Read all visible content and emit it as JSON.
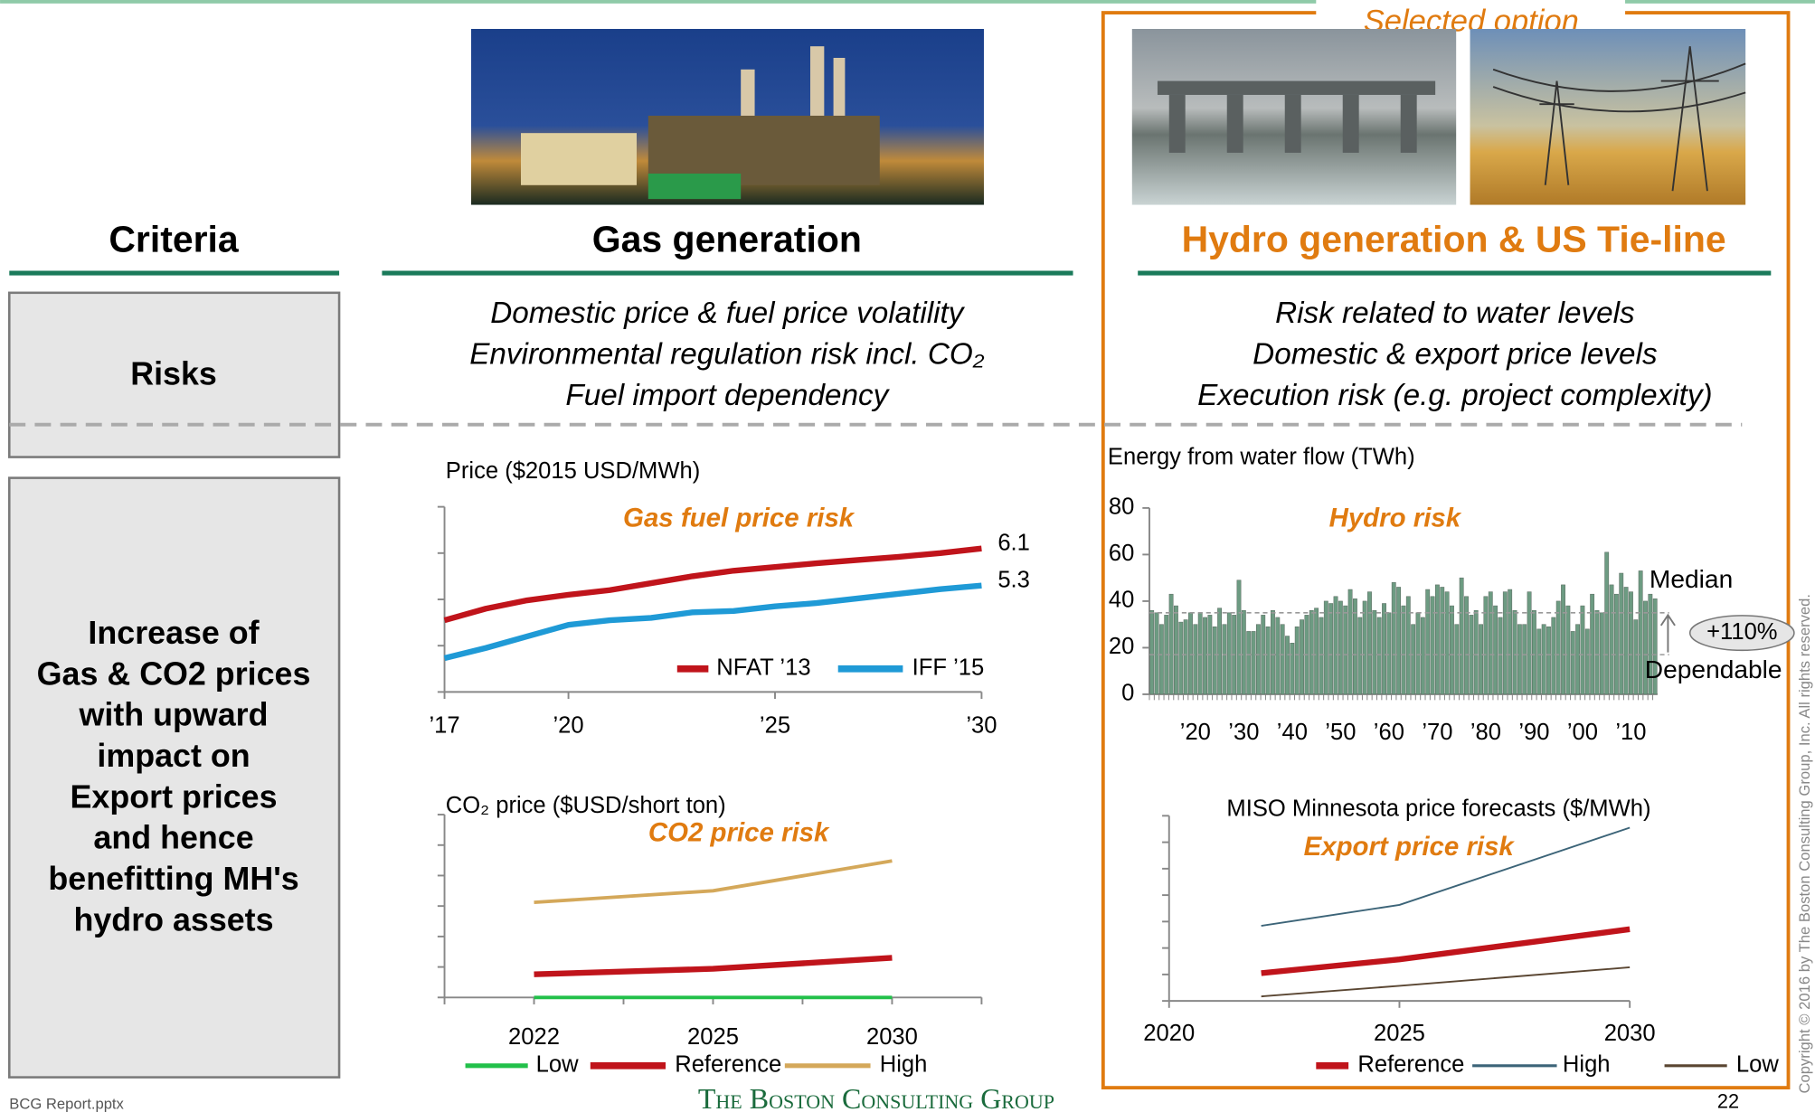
{
  "header": {
    "selected_option": "Selected option"
  },
  "columns": {
    "criteria": "Criteria",
    "gas": "Gas generation",
    "hydro": "Hydro generation & US Tie-line"
  },
  "risks": {
    "label": "Risks",
    "gas": [
      "Domestic price & fuel price volatility",
      "Environmental regulation risk incl. CO₂",
      "Fuel import dependency"
    ],
    "hydro": [
      "Risk related to water levels",
      "Domestic & export price levels",
      "Execution risk (e.g. project complexity)"
    ]
  },
  "impact": {
    "label": [
      "Increase of",
      "Gas & CO2 prices",
      "with upward",
      "impact on",
      "Export prices",
      "and hence",
      "benefitting MH's",
      "hydro assets"
    ]
  },
  "footer": {
    "file": "BCG Report.pptx",
    "logo": "The Boston Consulting Group",
    "page": "22",
    "copyright": "Copyright © 2016 by The Boston Consulting Group, Inc. All rights reserved."
  },
  "chart_data": [
    {
      "type": "line",
      "title": "Price ($2015 USD/MWh)",
      "annotation": "Gas fuel price risk",
      "x": [
        2017,
        2018,
        2019,
        2020,
        2021,
        2022,
        2023,
        2024,
        2025,
        2026,
        2027,
        2028,
        2029,
        2030
      ],
      "xlim": [
        2017,
        2030
      ],
      "xticks": [
        {
          "value": 2017,
          "label": "’17"
        },
        {
          "value": 2020,
          "label": "’20"
        },
        {
          "value": 2025,
          "label": "’25"
        },
        {
          "value": 2030,
          "label": "’30"
        }
      ],
      "ylim": [
        3,
        7
      ],
      "yticks": [
        3,
        4,
        5,
        6,
        7
      ],
      "ytick_labels": false,
      "end_labels": true,
      "series": [
        {
          "name": "NFAT ’13",
          "color": "#c0141b",
          "style": "bold",
          "values": [
            4.55,
            4.8,
            4.98,
            5.1,
            5.2,
            5.35,
            5.5,
            5.62,
            5.7,
            5.78,
            5.85,
            5.92,
            6.0,
            6.1
          ]
        },
        {
          "name": "IFF ’15",
          "color": "#1f9ad6",
          "style": "bold",
          "values": [
            3.73,
            3.95,
            4.2,
            4.45,
            4.55,
            4.6,
            4.72,
            4.75,
            4.85,
            4.92,
            5.02,
            5.12,
            5.22,
            5.3
          ]
        }
      ]
    },
    {
      "type": "line",
      "title": "CO₂ price ($USD/short ton)",
      "annotation": "CO2 price risk",
      "categories": [
        "2022",
        "2025",
        "2030"
      ],
      "ylim": [
        0,
        30
      ],
      "yticks": [
        0,
        5,
        10,
        15,
        20,
        25,
        30
      ],
      "ytick_labels": false,
      "series": [
        {
          "name": "Low",
          "color": "#22c04a",
          "style": "medium",
          "values": [
            0,
            0,
            0
          ]
        },
        {
          "name": "Reference",
          "color": "#c0141b",
          "style": "bold",
          "values": [
            3.8,
            4.7,
            6.5
          ]
        },
        {
          "name": "High",
          "color": "#d4a85a",
          "style": "medium",
          "values": [
            15.6,
            17.5,
            22.4
          ]
        }
      ]
    },
    {
      "type": "bar",
      "title": "Energy from water flow (TWh)",
      "annotation": "Hydro risk",
      "color": "#6d9b82",
      "categories": [
        null,
        null,
        null,
        null,
        null,
        null,
        null,
        null,
        null,
        "’20",
        null,
        null,
        null,
        null,
        null,
        null,
        null,
        null,
        null,
        "’30",
        null,
        null,
        null,
        null,
        null,
        null,
        null,
        null,
        null,
        "’40",
        null,
        null,
        null,
        null,
        null,
        null,
        null,
        null,
        null,
        "’50",
        null,
        null,
        null,
        null,
        null,
        null,
        null,
        null,
        null,
        "’60",
        null,
        null,
        null,
        null,
        null,
        null,
        null,
        null,
        null,
        "’70",
        null,
        null,
        null,
        null,
        null,
        null,
        null,
        null,
        null,
        "’80",
        null,
        null,
        null,
        null,
        null,
        null,
        null,
        null,
        null,
        "’90",
        null,
        null,
        null,
        null,
        null,
        null,
        null,
        null,
        null,
        "’00",
        null,
        null,
        null,
        null,
        null,
        null,
        null,
        null,
        null,
        "’10",
        null,
        null,
        null,
        null,
        null
      ],
      "values": [
        36,
        35,
        30,
        34,
        43,
        38,
        31,
        32,
        35,
        30,
        35,
        33,
        34,
        29,
        37,
        30,
        35,
        34,
        49,
        36,
        27,
        27,
        30,
        34,
        29,
        36,
        33,
        30,
        25,
        22,
        29,
        32,
        34,
        36,
        37,
        33,
        40,
        39,
        42,
        40,
        38,
        45,
        41,
        33,
        40,
        44,
        36,
        33,
        39,
        35,
        48,
        46,
        38,
        42,
        30,
        35,
        33,
        45,
        42,
        47,
        46,
        44,
        38,
        30,
        50,
        42,
        34,
        36,
        30,
        42,
        44,
        38,
        33,
        44,
        45,
        36,
        30,
        30,
        44,
        36,
        28,
        30,
        29,
        33,
        40,
        47,
        38,
        27,
        30,
        38,
        28,
        43,
        36,
        35,
        61,
        47,
        43,
        52,
        46,
        44,
        32,
        53,
        40,
        43,
        41
      ],
      "ylim": [
        0,
        80
      ],
      "yticks": [
        0,
        20,
        40,
        60,
        80
      ],
      "reference_lines": [
        {
          "label": "Median",
          "value": 35
        },
        {
          "label": "Dependable",
          "value": 17
        }
      ],
      "change_label": "+110%"
    },
    {
      "type": "line",
      "title": "MISO Minnesota price forecasts ($/MWh)",
      "annotation": "Export price risk",
      "x": [
        2022,
        2025,
        2030
      ],
      "xlim": [
        2020,
        2030
      ],
      "xticks": [
        2020,
        2025,
        2030
      ],
      "ylim": [
        0,
        70
      ],
      "yticks": [
        0,
        10,
        20,
        30,
        40,
        50,
        60,
        70
      ],
      "ytick_labels": false,
      "series": [
        {
          "name": "Reference",
          "color": "#c0141b",
          "style": "bold",
          "values": [
            10.5,
            15.7,
            27.1
          ]
        },
        {
          "name": "High",
          "color": "#3c6478",
          "style": "thin",
          "values": [
            28.4,
            36.3,
            65.5
          ]
        },
        {
          "name": "Low",
          "color": "#5a4632",
          "style": "thin",
          "values": [
            1.7,
            5.7,
            12.7
          ]
        }
      ]
    }
  ]
}
